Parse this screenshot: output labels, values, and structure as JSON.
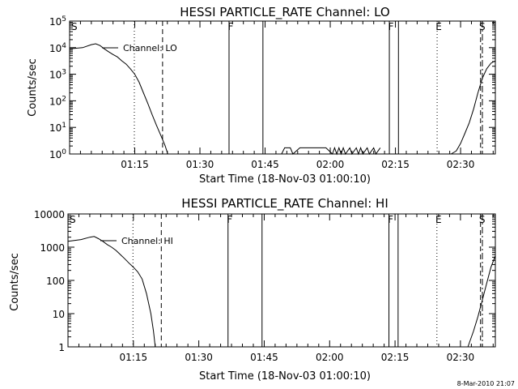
{
  "chart_data": [
    {
      "type": "line",
      "title": "HESSI PARTICLE_RATE Channel: LO",
      "ylabel": "Counts/sec",
      "xlabel": "Start Time (18-Nov-03 01:00:10)",
      "ylog": true,
      "ylim": [
        1,
        100000
      ],
      "xlim_minutes": [
        0,
        98
      ],
      "x_tick_labels": [
        "01:15",
        "01:30",
        "01:45",
        "02:00",
        "02:15",
        "02:30"
      ],
      "x_tick_minutes": [
        15,
        30,
        45,
        60,
        75,
        90
      ],
      "y_tick_labels": [
        "10^0",
        "10^1",
        "10^2",
        "10^3",
        "10^4",
        "10^5"
      ],
      "y_tick_values": [
        1,
        10,
        100,
        1000,
        10000,
        100000
      ],
      "legend": "Channel: LO",
      "series": [
        {
          "name": "Channel: LO",
          "segments": [
            [
              [
                0,
                9000
              ],
              [
                3,
                10000
              ],
              [
                5,
                13000
              ],
              [
                6,
                14000
              ],
              [
                7,
                12000
              ],
              [
                8,
                9000
              ],
              [
                9,
                7000
              ],
              [
                10,
                5500
              ],
              [
                11,
                4500
              ],
              [
                12,
                3200
              ],
              [
                13,
                2400
              ],
              [
                14,
                1600
              ],
              [
                15,
                1000
              ],
              [
                16,
                500
              ],
              [
                17,
                200
              ],
              [
                18,
                80
              ],
              [
                19,
                30
              ],
              [
                20,
                12
              ],
              [
                21,
                5
              ],
              [
                22,
                2
              ],
              [
                22.6,
                1
              ]
            ],
            [
              [
                48.8,
                1
              ],
              [
                49.5,
                1.7
              ],
              [
                50.8,
                1.7
              ],
              [
                51.4,
                1
              ],
              [
                53,
                1.7
              ],
              [
                59,
                1.7
              ],
              [
                60.5,
                1
              ],
              [
                61,
                1.7
              ],
              [
                61.5,
                1
              ],
              [
                62,
                1.7
              ],
              [
                62.5,
                1
              ],
              [
                63,
                1.7
              ],
              [
                63.5,
                1
              ],
              [
                64.5,
                1.7
              ],
              [
                65,
                1
              ],
              [
                66,
                1.7
              ],
              [
                66.5,
                1
              ],
              [
                67,
                1.7
              ],
              [
                67.5,
                1
              ],
              [
                68.5,
                1.7
              ],
              [
                69,
                1
              ],
              [
                70,
                1.7
              ],
              [
                70.5,
                1
              ],
              [
                71.5,
                1.7
              ]
            ],
            [
              [
                87.8,
                1
              ],
              [
                89,
                1.3
              ],
              [
                90,
                2.5
              ],
              [
                91,
                6
              ],
              [
                92,
                15
              ],
              [
                93,
                50
              ],
              [
                94,
                200
              ],
              [
                95,
                700
              ],
              [
                96,
                1600
              ],
              [
                97,
                2600
              ],
              [
                98,
                3200
              ]
            ]
          ]
        }
      ],
      "markers": [
        {
          "label": "S",
          "minute": 0,
          "style": "none"
        },
        {
          "label": "",
          "minute": 14.9,
          "style": "dotted"
        },
        {
          "label": "",
          "minute": 21.4,
          "style": "dashed"
        },
        {
          "label": "F",
          "minute": 36.7,
          "style": "solid"
        },
        {
          "label": "",
          "minute": 44.5,
          "style": "solid"
        },
        {
          "label": "F",
          "minute": 73.6,
          "style": "solid"
        },
        {
          "label": "",
          "minute": 75.7,
          "style": "solid"
        },
        {
          "label": "E",
          "minute": 84.6,
          "style": "dotted"
        },
        {
          "label": "S",
          "minute": 94.6,
          "style": "dashed"
        },
        {
          "label": "",
          "minute": 99.4,
          "style": "dashdot"
        }
      ]
    },
    {
      "type": "line",
      "title": "HESSI PARTICLE_RATE Channel: HI",
      "ylabel": "Counts/sec",
      "xlabel": "Start Time (18-Nov-03 01:00:10)",
      "ylog": true,
      "ylim": [
        1,
        10000
      ],
      "xlim_minutes": [
        0,
        98
      ],
      "x_tick_labels": [
        "01:15",
        "01:30",
        "01:45",
        "02:00",
        "02:15",
        "02:30"
      ],
      "x_tick_minutes": [
        15,
        30,
        45,
        60,
        75,
        90
      ],
      "y_tick_labels": [
        "1",
        "10",
        "100",
        "1000",
        "10000"
      ],
      "y_tick_values": [
        1,
        10,
        100,
        1000,
        10000
      ],
      "legend": "Channel: HI",
      "series": [
        {
          "name": "Channel: HI",
          "segments": [
            [
              [
                0,
                1500
              ],
              [
                3,
                1700
              ],
              [
                5,
                2000
              ],
              [
                6,
                2100
              ],
              [
                7,
                1800
              ],
              [
                8,
                1500
              ],
              [
                9,
                1200
              ],
              [
                10,
                1000
              ],
              [
                11,
                800
              ],
              [
                12,
                600
              ],
              [
                13,
                450
              ],
              [
                14,
                330
              ],
              [
                15,
                250
              ],
              [
                16,
                180
              ],
              [
                17,
                110
              ],
              [
                18,
                40
              ],
              [
                19,
                10
              ],
              [
                19.6,
                3
              ],
              [
                20,
                1
              ]
            ],
            [
              [
                91.7,
                1
              ],
              [
                93,
                3
              ],
              [
                94,
                8
              ],
              [
                95,
                25
              ],
              [
                96,
                80
              ],
              [
                97,
                250
              ],
              [
                98,
                550
              ]
            ]
          ]
        }
      ],
      "markers": [
        {
          "label": "S",
          "minute": 0,
          "style": "none"
        },
        {
          "label": "",
          "minute": 14.9,
          "style": "dotted"
        },
        {
          "label": "",
          "minute": 21.4,
          "style": "dashed"
        },
        {
          "label": "F",
          "minute": 36.7,
          "style": "solid"
        },
        {
          "label": "",
          "minute": 44.5,
          "style": "solid"
        },
        {
          "label": "F",
          "minute": 73.6,
          "style": "solid"
        },
        {
          "label": "",
          "minute": 75.7,
          "style": "solid"
        },
        {
          "label": "E",
          "minute": 84.6,
          "style": "dotted"
        },
        {
          "label": "S",
          "minute": 94.6,
          "style": "dashed"
        },
        {
          "label": "",
          "minute": 99.4,
          "style": "dashdot"
        }
      ]
    }
  ],
  "footer_stamp": "8-Mar-2010 21:07"
}
